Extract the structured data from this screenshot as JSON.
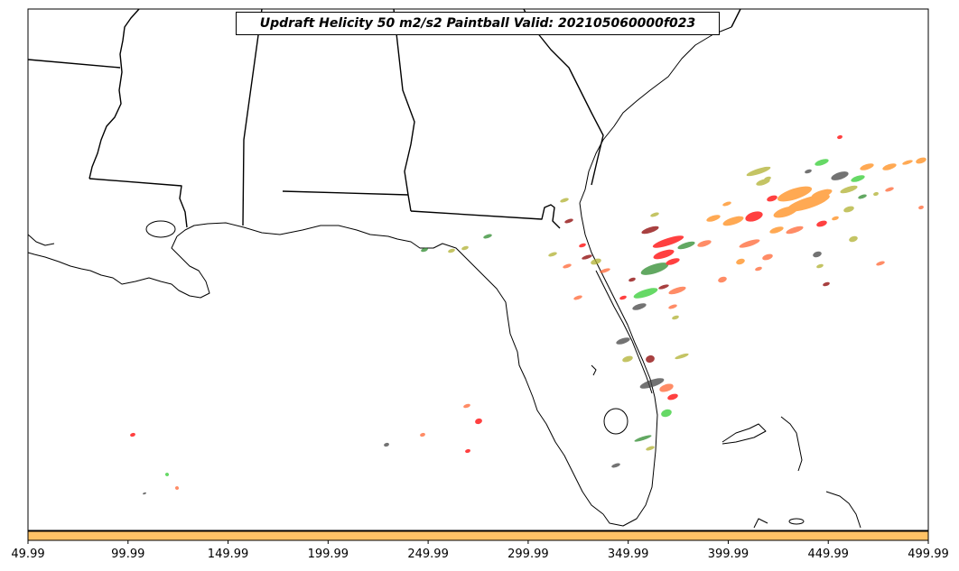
{
  "title": "Updraft Helicity 50 m2/s2 Paintball Valid: 202105060000f023",
  "colors": {
    "coastline": "#000000",
    "colorbar": "#ffc266",
    "members": [
      "#ff0000",
      "#ff8c1a",
      "#2e8b2e",
      "#33cc33",
      "#b0b030",
      "#8b0000",
      "#444444",
      "#ff6633"
    ]
  },
  "colorbar": {
    "tick_labels": [
      "49.99",
      "99.99",
      "149.99",
      "199.99",
      "249.99",
      "299.99",
      "349.99",
      "399.99",
      "449.99",
      "499.99"
    ]
  }
}
